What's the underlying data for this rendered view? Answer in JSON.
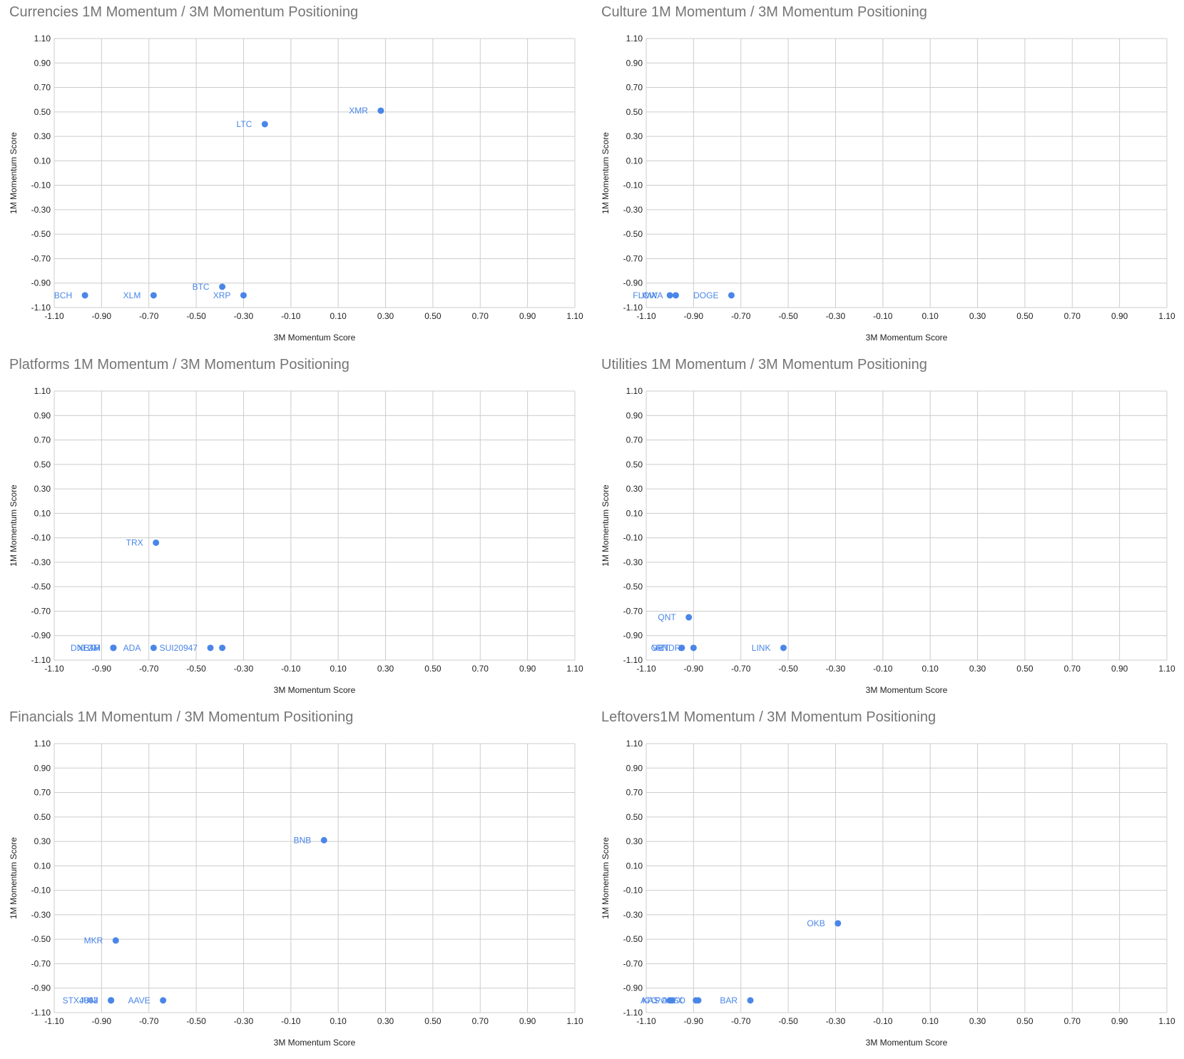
{
  "colors": {
    "point": "#4a86e8",
    "label": "#4a86e8",
    "grid": "#cccccc",
    "axis_text": "#222222",
    "title": "#757575"
  },
  "chart_data": [
    {
      "type": "scatter",
      "title": "Currencies 1M Momentum / 3M Momentum Positioning",
      "xlabel": "3M Momentum Score",
      "ylabel": "1M Momentum Score",
      "xlim": [
        -1.1,
        1.1
      ],
      "ylim": [
        -1.1,
        1.1
      ],
      "ticks": [
        "-1.10",
        "-0.90",
        "-0.70",
        "-0.50",
        "-0.30",
        "-0.10",
        "0.10",
        "0.30",
        "0.50",
        "0.70",
        "0.90",
        "1.10"
      ],
      "grid": true,
      "points": [
        {
          "label": "BCH",
          "x": -0.97,
          "y": -1.0
        },
        {
          "label": "XLM",
          "x": -0.68,
          "y": -1.0
        },
        {
          "label": "BTC",
          "x": -0.39,
          "y": -0.93
        },
        {
          "label": "XRP",
          "x": -0.3,
          "y": -1.0
        },
        {
          "label": "LTC",
          "x": -0.21,
          "y": 0.4
        },
        {
          "label": "XMR",
          "x": 0.28,
          "y": 0.51
        }
      ]
    },
    {
      "type": "scatter",
      "title": "Culture 1M Momentum / 3M Momentum Positioning",
      "xlabel": "3M Momentum Score",
      "ylabel": "1M Momentum Score",
      "xlim": [
        -1.1,
        1.1
      ],
      "ylim": [
        -1.1,
        1.1
      ],
      "ticks": [
        "-1.10",
        "-0.90",
        "-0.70",
        "-0.50",
        "-0.30",
        "-0.10",
        "0.10",
        "0.30",
        "0.50",
        "0.70",
        "0.90",
        "1.10"
      ],
      "grid": true,
      "points": [
        {
          "label": "IMX",
          "x": -1.0,
          "y": -1.0
        },
        {
          "label": "FLOWA",
          "x": -0.975,
          "y": -1.0
        },
        {
          "label": "DOGE",
          "x": -0.74,
          "y": -1.0
        }
      ]
    },
    {
      "type": "scatter",
      "title": "Platforms 1M Momentum / 3M Momentum Positioning",
      "xlabel": "3M Momentum Score",
      "ylabel": "1M Momentum Score",
      "xlim": [
        -1.1,
        1.1
      ],
      "ylim": [
        -1.1,
        1.1
      ],
      "ticks": [
        "-1.10",
        "-0.90",
        "-0.70",
        "-0.50",
        "-0.30",
        "-0.10",
        "0.10",
        "0.30",
        "0.50",
        "0.70",
        "0.90",
        "1.10"
      ],
      "grid": true,
      "points": [
        {
          "label": "TRX",
          "x": -0.67,
          "y": -0.14
        },
        {
          "label": "TCM",
          "x": -0.85,
          "y": -1.0
        },
        {
          "label": "DNEAR",
          "x": -0.85,
          "y": -1.0
        },
        {
          "label": "XETH",
          "x": -0.85,
          "y": -1.0
        },
        {
          "label": "ADA",
          "x": -0.68,
          "y": -1.0
        },
        {
          "label": "SUI20947",
          "x": -0.44,
          "y": -1.0
        },
        {
          "label": "",
          "x": -0.39,
          "y": -1.0
        }
      ]
    },
    {
      "type": "scatter",
      "title": "Utilities 1M Momentum / 3M Momentum Positioning",
      "xlabel": "3M Momentum Score",
      "ylabel": "1M Momentum Score",
      "xlim": [
        -1.1,
        1.1
      ],
      "ylim": [
        -1.1,
        1.1
      ],
      "ticks": [
        "-1.10",
        "-0.90",
        "-0.70",
        "-0.50",
        "-0.30",
        "-0.10",
        "0.10",
        "0.30",
        "0.50",
        "0.70",
        "0.90",
        "1.10"
      ],
      "grid": true,
      "points": [
        {
          "label": "QNT",
          "x": -0.92,
          "y": -0.75
        },
        {
          "label": "GRT",
          "x": -0.95,
          "y": -1.0
        },
        {
          "label": "VET",
          "x": -0.95,
          "y": -1.0
        },
        {
          "label": "RNDR",
          "x": -0.9,
          "y": -1.0
        },
        {
          "label": "LINK",
          "x": -0.52,
          "y": -1.0
        }
      ]
    },
    {
      "type": "scatter",
      "title": "Financials 1M Momentum / 3M Momentum Positioning",
      "xlabel": "3M Momentum Score",
      "ylabel": "1M Momentum Score",
      "xlim": [
        -1.1,
        1.1
      ],
      "ylim": [
        -1.1,
        1.1
      ],
      "ticks": [
        "-1.10",
        "-0.90",
        "-0.70",
        "-0.50",
        "-0.30",
        "-0.10",
        "0.10",
        "0.30",
        "0.50",
        "0.70",
        "0.90",
        "1.10"
      ],
      "grid": true,
      "points": [
        {
          "label": "BNB",
          "x": 0.04,
          "y": 0.31
        },
        {
          "label": "MKR",
          "x": -0.84,
          "y": -0.51
        },
        {
          "label": "STX4847",
          "x": -0.86,
          "y": -1.0
        },
        {
          "label": "UNI",
          "x": -0.86,
          "y": -1.0
        },
        {
          "label": "J083",
          "x": -0.86,
          "y": -1.0
        },
        {
          "label": "AAVE",
          "x": -0.64,
          "y": -1.0
        }
      ]
    },
    {
      "type": "scatter",
      "title": "Leftovers1M Momentum / 3M Momentum Positioning",
      "xlabel": "3M Momentum Score",
      "ylabel": "1M Momentum Score",
      "xlim": [
        -1.1,
        1.1
      ],
      "ylim": [
        -1.1,
        1.1
      ],
      "ticks": [
        "-1.10",
        "-0.90",
        "-0.70",
        "-0.50",
        "-0.30",
        "-0.10",
        "0.10",
        "0.30",
        "0.50",
        "0.70",
        "0.90",
        "1.10"
      ],
      "grid": true,
      "points": [
        {
          "label": "OKB",
          "x": -0.29,
          "y": -0.37
        },
        {
          "label": "ATC",
          "x": -1.0,
          "y": -1.0
        },
        {
          "label": "KAS",
          "x": -0.99,
          "y": -1.0
        },
        {
          "label": "POLYX",
          "x": -0.89,
          "y": -1.0
        },
        {
          "label": "ALGO",
          "x": -0.88,
          "y": -1.0
        },
        {
          "label": "BAR",
          "x": -0.66,
          "y": -1.0
        }
      ]
    }
  ]
}
